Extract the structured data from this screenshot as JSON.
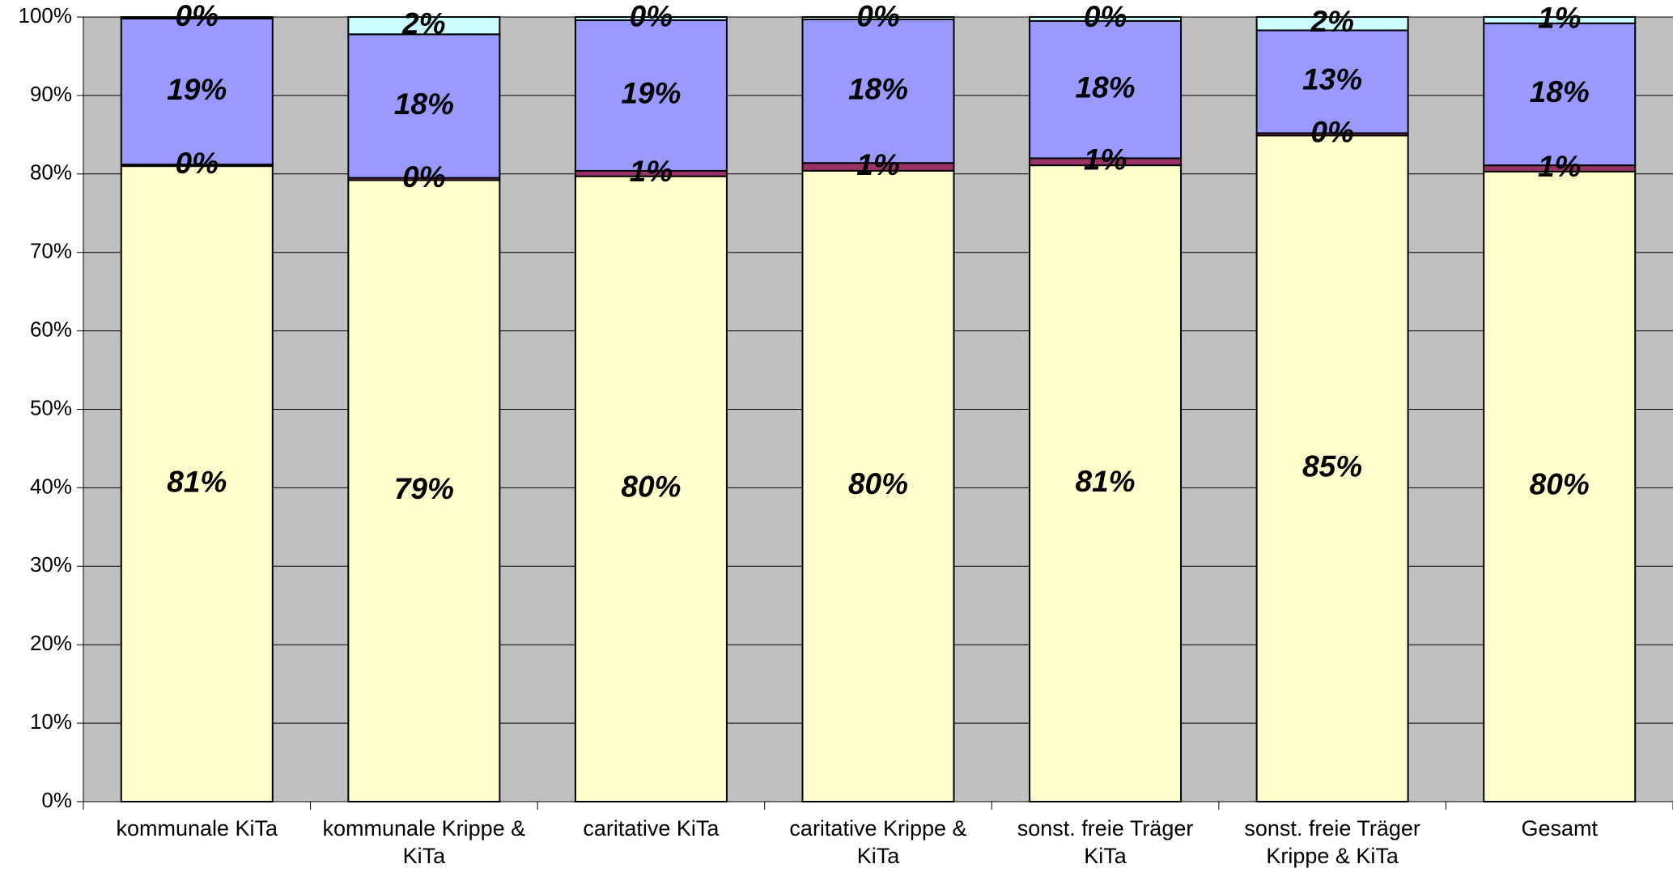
{
  "chart_data": {
    "type": "stacked_bar",
    "categories": [
      "kommunale KiTa",
      "kommunale Krippe & KiTa",
      "caritative KiTa",
      "caritative Krippe & KiTa",
      "sonst. freie Träger KiTa",
      "sonst. freie Träger Krippe & KiTa",
      "Gesamt"
    ],
    "series": [
      {
        "color": "#ffffcc",
        "values": [
          81.0,
          79.2,
          79.7,
          80.4,
          81.1,
          84.9,
          80.3
        ],
        "value_labels": [
          "81%",
          "79%",
          "80%",
          "80%",
          "81%",
          "85%",
          "80%"
        ]
      },
      {
        "color": "#993366",
        "values": [
          0.2,
          0.3,
          0.7,
          1.0,
          0.9,
          0.3,
          0.8
        ],
        "value_labels": [
          "0%",
          "0%",
          "1%",
          "1%",
          "1%",
          "0%",
          "1%"
        ]
      },
      {
        "color": "#9999ff",
        "values": [
          18.6,
          18.3,
          19.2,
          18.3,
          17.5,
          13.1,
          18.1
        ],
        "value_labels": [
          "19%",
          "18%",
          "19%",
          "18%",
          "18%",
          "13%",
          "18%"
        ]
      },
      {
        "color": "#ccffff",
        "values": [
          0.2,
          2.2,
          0.4,
          0.3,
          0.5,
          1.7,
          0.8
        ],
        "value_labels": [
          "0%",
          "2%",
          "0%",
          "0%",
          "0%",
          "2%",
          "1%"
        ]
      }
    ],
    "ylim": [
      0,
      100
    ],
    "yticks": [
      {
        "value": 0,
        "label": "0%"
      },
      {
        "value": 10,
        "label": "10%"
      },
      {
        "value": 20,
        "label": "20%"
      },
      {
        "value": 30,
        "label": "30%"
      },
      {
        "value": 40,
        "label": "40%"
      },
      {
        "value": 50,
        "label": "50%"
      },
      {
        "value": 60,
        "label": "60%"
      },
      {
        "value": 70,
        "label": "70%"
      },
      {
        "value": 80,
        "label": "80%"
      },
      {
        "value": 90,
        "label": "90%"
      },
      {
        "value": 100,
        "label": "100%"
      }
    ],
    "grid": true,
    "plot_background": "#c0c0c0"
  }
}
